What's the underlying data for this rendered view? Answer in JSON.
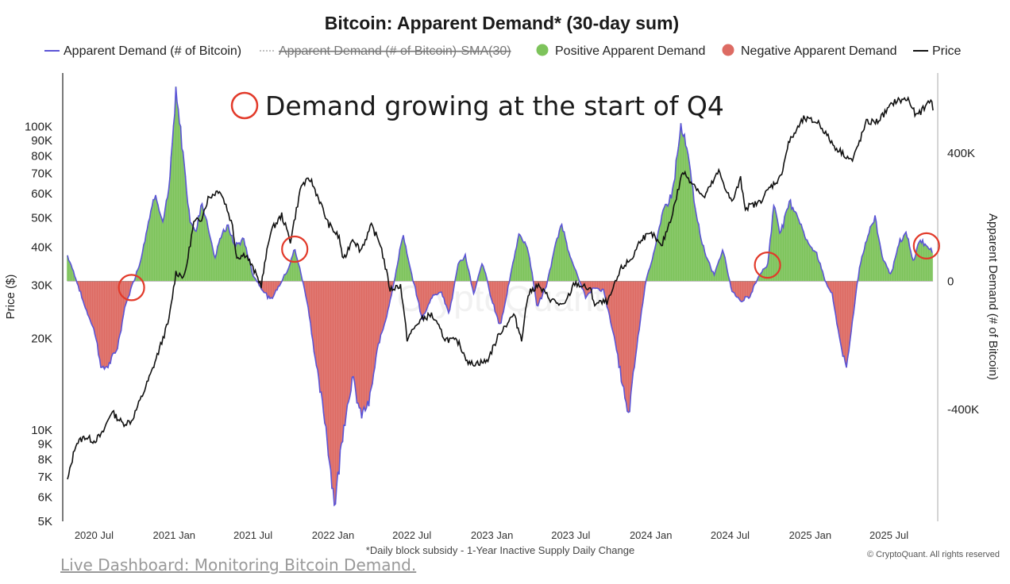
{
  "page": {
    "link_text": "Live Dashboard: Monitoring Bitcoin Demand."
  },
  "chart_data": {
    "type": "area",
    "title": "Bitcoin: Apparent Demand* (30-day sum)",
    "footnote": "*Daily block subsidy - 1-Year Inactive Supply Daily Change",
    "copyright": "© CryptoQuant. All rights reserved",
    "watermark": "CryptoQuant",
    "annotation": "Demand growing at the start of Q4",
    "ylabel_left": "Price ($)",
    "ylabel_right": "Apparent Demand (# of Bitcoin)",
    "legend": [
      {
        "label": "Apparent Demand (# of Bitcoin)",
        "color": "#5b54d6",
        "marker": "line"
      },
      {
        "label": "Apparent Demand (# of Bitcoin)-SMA(30)",
        "color": "#999999",
        "marker": "dotted",
        "hidden": true
      },
      {
        "label": "Positive Apparent Demand",
        "color": "#7dc35b",
        "marker": "dot"
      },
      {
        "label": "Negative Apparent Demand",
        "color": "#dd6b63",
        "marker": "dot"
      },
      {
        "label": "Price",
        "color": "#111111",
        "marker": "line"
      }
    ],
    "x_ticks": [
      "2020 Jul",
      "2021 Jan",
      "2021 Jul",
      "2022 Jan",
      "2022 Jul",
      "2023 Jan",
      "2023 Jul",
      "2024 Jan",
      "2024 Jul",
      "2025 Jan",
      "2025 Jul"
    ],
    "x_range": [
      "2020-05-01",
      "2025-10-10"
    ],
    "y_left": {
      "scale": "log",
      "range": [
        5000,
        150000
      ],
      "ticks": [
        {
          "value": 5000,
          "label": "5K"
        },
        {
          "value": 6000,
          "label": "6K"
        },
        {
          "value": 7000,
          "label": "7K"
        },
        {
          "value": 8000,
          "label": "8K"
        },
        {
          "value": 9000,
          "label": "9K"
        },
        {
          "value": 10000,
          "label": "10K"
        },
        {
          "value": 20000,
          "label": "20K"
        },
        {
          "value": 30000,
          "label": "30K"
        },
        {
          "value": 40000,
          "label": "40K"
        },
        {
          "value": 50000,
          "label": "50K"
        },
        {
          "value": 60000,
          "label": "60K"
        },
        {
          "value": 70000,
          "label": "70K"
        },
        {
          "value": 80000,
          "label": "80K"
        },
        {
          "value": 90000,
          "label": "90K"
        },
        {
          "value": 100000,
          "label": "100K"
        }
      ]
    },
    "y_right": {
      "scale": "linear",
      "range": [
        -750000,
        650000
      ],
      "ticks": [
        {
          "value": 400000,
          "label": "400K"
        },
        {
          "value": 0,
          "label": "0"
        },
        {
          "value": -400000,
          "label": "-400K"
        }
      ]
    },
    "highlight_dates": [
      "2020-09-25",
      "2021-10-05",
      "2024-09-25",
      "2025-09-25"
    ],
    "demand_series": {
      "name": "Apparent Demand (# of Bitcoin)",
      "points": [
        [
          "2020-05-01",
          80000
        ],
        [
          "2020-05-20",
          10000
        ],
        [
          "2020-06-10",
          -80000
        ],
        [
          "2020-07-01",
          -150000
        ],
        [
          "2020-07-20",
          -280000
        ],
        [
          "2020-08-10",
          -250000
        ],
        [
          "2020-08-25",
          -200000
        ],
        [
          "2020-09-10",
          -80000
        ],
        [
          "2020-09-25",
          -20000
        ],
        [
          "2020-10-15",
          60000
        ],
        [
          "2020-11-05",
          200000
        ],
        [
          "2020-11-20",
          280000
        ],
        [
          "2020-12-05",
          180000
        ],
        [
          "2020-12-20",
          280000
        ],
        [
          "2021-01-05",
          580000
        ],
        [
          "2021-01-20",
          420000
        ],
        [
          "2021-02-05",
          200000
        ],
        [
          "2021-02-20",
          150000
        ],
        [
          "2021-03-05",
          250000
        ],
        [
          "2021-03-20",
          170000
        ],
        [
          "2021-04-05",
          70000
        ],
        [
          "2021-04-20",
          150000
        ],
        [
          "2021-05-05",
          170000
        ],
        [
          "2021-05-20",
          110000
        ],
        [
          "2021-06-10",
          130000
        ],
        [
          "2021-07-01",
          20000
        ],
        [
          "2021-07-20",
          -20000
        ],
        [
          "2021-08-10",
          -60000
        ],
        [
          "2021-09-01",
          -10000
        ],
        [
          "2021-09-20",
          40000
        ],
        [
          "2021-10-05",
          100000
        ],
        [
          "2021-10-20",
          20000
        ],
        [
          "2021-11-05",
          -80000
        ],
        [
          "2021-11-25",
          -280000
        ],
        [
          "2021-12-15",
          -450000
        ],
        [
          "2022-01-05",
          -700000
        ],
        [
          "2022-01-25",
          -450000
        ],
        [
          "2022-02-15",
          -300000
        ],
        [
          "2022-03-05",
          -420000
        ],
        [
          "2022-03-25",
          -380000
        ],
        [
          "2022-04-15",
          -200000
        ],
        [
          "2022-05-05",
          -100000
        ],
        [
          "2022-05-25",
          20000
        ],
        [
          "2022-06-10",
          150000
        ],
        [
          "2022-06-25",
          50000
        ],
        [
          "2022-07-10",
          -30000
        ],
        [
          "2022-07-25",
          -120000
        ],
        [
          "2022-08-15",
          -50000
        ],
        [
          "2022-09-05",
          -30000
        ],
        [
          "2022-09-25",
          -100000
        ],
        [
          "2022-10-15",
          50000
        ],
        [
          "2022-11-01",
          80000
        ],
        [
          "2022-11-20",
          -40000
        ],
        [
          "2022-12-10",
          60000
        ],
        [
          "2023-01-01",
          -60000
        ],
        [
          "2023-01-20",
          -140000
        ],
        [
          "2023-02-10",
          0
        ],
        [
          "2023-03-05",
          150000
        ],
        [
          "2023-03-25",
          100000
        ],
        [
          "2023-04-15",
          -80000
        ],
        [
          "2023-05-05",
          -20000
        ],
        [
          "2023-05-25",
          100000
        ],
        [
          "2023-06-10",
          180000
        ],
        [
          "2023-06-25",
          100000
        ],
        [
          "2023-07-15",
          20000
        ],
        [
          "2023-08-05",
          -50000
        ],
        [
          "2023-08-25",
          -20000
        ],
        [
          "2023-09-15",
          -30000
        ],
        [
          "2023-10-05",
          -150000
        ],
        [
          "2023-10-25",
          -300000
        ],
        [
          "2023-11-10",
          -430000
        ],
        [
          "2023-11-30",
          -200000
        ],
        [
          "2023-12-20",
          0
        ],
        [
          "2024-01-10",
          100000
        ],
        [
          "2024-01-30",
          220000
        ],
        [
          "2024-02-20",
          280000
        ],
        [
          "2024-03-10",
          480000
        ],
        [
          "2024-03-25",
          400000
        ],
        [
          "2024-04-15",
          200000
        ],
        [
          "2024-05-05",
          80000
        ],
        [
          "2024-05-25",
          20000
        ],
        [
          "2024-06-15",
          100000
        ],
        [
          "2024-07-05",
          -30000
        ],
        [
          "2024-07-25",
          -60000
        ],
        [
          "2024-08-15",
          -50000
        ],
        [
          "2024-09-05",
          20000
        ],
        [
          "2024-09-25",
          50000
        ],
        [
          "2024-10-10",
          240000
        ],
        [
          "2024-10-25",
          150000
        ],
        [
          "2024-11-15",
          250000
        ],
        [
          "2024-12-05",
          200000
        ],
        [
          "2024-12-25",
          120000
        ],
        [
          "2025-01-15",
          90000
        ],
        [
          "2025-02-05",
          0
        ],
        [
          "2025-02-20",
          -40000
        ],
        [
          "2025-03-10",
          -180000
        ],
        [
          "2025-03-25",
          -280000
        ],
        [
          "2025-04-10",
          -100000
        ],
        [
          "2025-04-25",
          50000
        ],
        [
          "2025-05-15",
          150000
        ],
        [
          "2025-05-30",
          200000
        ],
        [
          "2025-06-15",
          80000
        ],
        [
          "2025-07-05",
          20000
        ],
        [
          "2025-07-25",
          120000
        ],
        [
          "2025-08-10",
          150000
        ],
        [
          "2025-08-25",
          60000
        ],
        [
          "2025-09-10",
          130000
        ],
        [
          "2025-09-25",
          110000
        ],
        [
          "2025-10-10",
          90000
        ]
      ]
    },
    "price_series": {
      "name": "Price",
      "points": [
        [
          "2020-05-01",
          6800
        ],
        [
          "2020-05-20",
          9000
        ],
        [
          "2020-06-10",
          9500
        ],
        [
          "2020-07-01",
          9200
        ],
        [
          "2020-07-20",
          9700
        ],
        [
          "2020-08-10",
          11500
        ],
        [
          "2020-09-05",
          10500
        ],
        [
          "2020-09-25",
          10700
        ],
        [
          "2020-10-20",
          13000
        ],
        [
          "2020-11-10",
          15500
        ],
        [
          "2020-12-01",
          19000
        ],
        [
          "2020-12-20",
          23000
        ],
        [
          "2021-01-05",
          33000
        ],
        [
          "2021-01-25",
          32000
        ],
        [
          "2021-02-15",
          48000
        ],
        [
          "2021-03-05",
          50000
        ],
        [
          "2021-03-20",
          58000
        ],
        [
          "2021-04-15",
          62000
        ],
        [
          "2021-04-30",
          55000
        ],
        [
          "2021-05-15",
          47000
        ],
        [
          "2021-05-25",
          37000
        ],
        [
          "2021-06-15",
          38000
        ],
        [
          "2021-07-01",
          34000
        ],
        [
          "2021-07-20",
          30000
        ],
        [
          "2021-08-10",
          45000
        ],
        [
          "2021-09-05",
          51000
        ],
        [
          "2021-09-25",
          42000
        ],
        [
          "2021-10-20",
          64000
        ],
        [
          "2021-11-10",
          67000
        ],
        [
          "2021-12-01",
          57000
        ],
        [
          "2021-12-20",
          48000
        ],
        [
          "2022-01-15",
          43000
        ],
        [
          "2022-01-25",
          36000
        ],
        [
          "2022-02-15",
          43000
        ],
        [
          "2022-03-05",
          39000
        ],
        [
          "2022-03-30",
          47000
        ],
        [
          "2022-04-20",
          41000
        ],
        [
          "2022-05-12",
          29000
        ],
        [
          "2022-06-05",
          30000
        ],
        [
          "2022-06-20",
          20000
        ],
        [
          "2022-07-20",
          23000
        ],
        [
          "2022-08-15",
          24000
        ],
        [
          "2022-09-15",
          20000
        ],
        [
          "2022-10-15",
          19500
        ],
        [
          "2022-11-10",
          16500
        ],
        [
          "2022-12-20",
          16800
        ],
        [
          "2023-01-20",
          21000
        ],
        [
          "2023-02-20",
          24000
        ],
        [
          "2023-03-10",
          20000
        ],
        [
          "2023-03-25",
          28000
        ],
        [
          "2023-04-15",
          30000
        ],
        [
          "2023-05-15",
          27000
        ],
        [
          "2023-06-15",
          25500
        ],
        [
          "2023-07-10",
          30500
        ],
        [
          "2023-08-15",
          29000
        ],
        [
          "2023-08-25",
          26000
        ],
        [
          "2023-09-25",
          26500
        ],
        [
          "2023-10-25",
          34000
        ],
        [
          "2023-11-20",
          37000
        ],
        [
          "2023-12-10",
          43000
        ],
        [
          "2024-01-05",
          44000
        ],
        [
          "2024-01-25",
          40000
        ],
        [
          "2024-02-20",
          52000
        ],
        [
          "2024-03-14",
          71000
        ],
        [
          "2024-04-15",
          63000
        ],
        [
          "2024-05-01",
          58000
        ],
        [
          "2024-06-05",
          71000
        ],
        [
          "2024-07-05",
          56000
        ],
        [
          "2024-07-25",
          67000
        ],
        [
          "2024-08-05",
          54000
        ],
        [
          "2024-09-05",
          56000
        ],
        [
          "2024-10-01",
          63000
        ],
        [
          "2024-10-25",
          68000
        ],
        [
          "2024-11-12",
          88000
        ],
        [
          "2024-12-17",
          106000
        ],
        [
          "2025-01-20",
          103000
        ],
        [
          "2025-02-25",
          86000
        ],
        [
          "2025-04-08",
          77000
        ],
        [
          "2025-05-10",
          103000
        ],
        [
          "2025-06-05",
          104000
        ],
        [
          "2025-07-14",
          121000
        ],
        [
          "2025-08-14",
          123000
        ],
        [
          "2025-09-01",
          108000
        ],
        [
          "2025-09-20",
          115000
        ],
        [
          "2025-10-05",
          124000
        ],
        [
          "2025-10-10",
          113000
        ]
      ]
    }
  }
}
